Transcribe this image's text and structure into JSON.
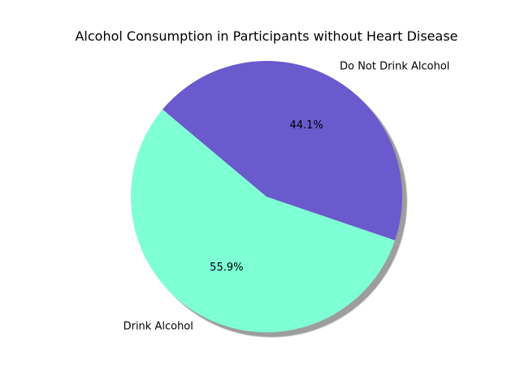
{
  "chart_data": {
    "type": "pie",
    "title": "Alcohol Consumption in Participants without Heart Disease",
    "categories": [
      "Drink Alcohol",
      "Do Not Drink Alcohol"
    ],
    "values": [
      55.9,
      44.1
    ],
    "value_labels": [
      "55.9%",
      "44.1%"
    ],
    "colors": [
      "#7fffd4",
      "#6a5acd"
    ],
    "start_angle_deg": 140,
    "shadow": true,
    "legend": "none"
  }
}
